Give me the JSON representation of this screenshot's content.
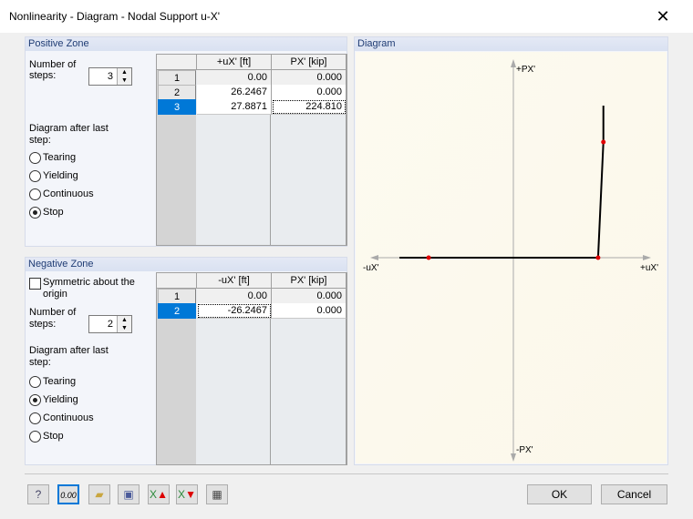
{
  "window": {
    "title": "Nonlinearity - Diagram - Nodal Support u-X'",
    "close_icon": "close-icon"
  },
  "positive": {
    "title": "Positive Zone",
    "steps_label": "Number of steps:",
    "steps": "3",
    "headers": [
      "+uX' [ft]",
      "PX' [kip]"
    ],
    "rows": [
      [
        "1",
        "0.00",
        "0.000"
      ],
      [
        "2",
        "26.2467",
        "0.000"
      ],
      [
        "3",
        "27.8871",
        "224.810"
      ]
    ],
    "after_label": "Diagram after last step:",
    "options": [
      "Tearing",
      "Yielding",
      "Continuous",
      "Stop"
    ],
    "selected": "Stop"
  },
  "negative": {
    "title": "Negative Zone",
    "symmetric_label": "Symmetric about the origin",
    "symmetric": false,
    "steps_label": "Number of steps:",
    "steps": "2",
    "headers": [
      "-uX' [ft]",
      "PX' [kip]"
    ],
    "rows": [
      [
        "1",
        "0.00",
        "0.000"
      ],
      [
        "2",
        "-26.2467",
        "0.000"
      ]
    ],
    "after_label": "Diagram after last step:",
    "options": [
      "Tearing",
      "Yielding",
      "Continuous",
      "Stop"
    ],
    "selected": "Yielding"
  },
  "diagram": {
    "title": "Diagram",
    "axis_top": "+PX'",
    "axis_bottom": "-PX'",
    "axis_left": "-uX'",
    "axis_right": "+uX'",
    "line_color": "#000000",
    "point_color": "#e00000"
  },
  "toolbar": {
    "icons": [
      "help-icon",
      "number-format-icon",
      "open-icon",
      "save-icon",
      "excel-import-icon",
      "excel-export-icon",
      "calculator-icon"
    ]
  },
  "buttons": {
    "ok": "OK",
    "cancel": "Cancel"
  }
}
